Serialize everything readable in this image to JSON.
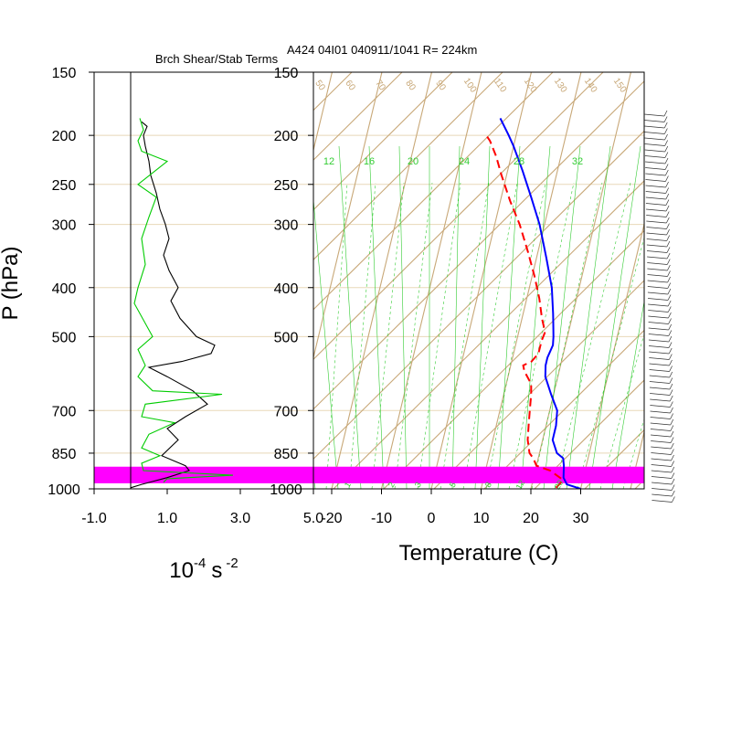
{
  "header": {
    "left_title": "Brch Shear/Stab Terms",
    "right_title": "A424 04I01 040911/1041 R= 224km"
  },
  "colors": {
    "background": "#ffffff",
    "grid_brown": "#c8a878",
    "pressure_line": "#e8d8b8",
    "mixing_ratio": "#33cc33",
    "temperature": "#0000ff",
    "dewpoint": "#ff0000",
    "shear_term": "#000000",
    "stability_term": "#00cc00",
    "highlight": "#ff00ff"
  },
  "chart_data": [
    {
      "type": "line",
      "title": "Brch Shear/Stab Terms",
      "ylabel": "P (hPa)",
      "xlabel": "10-4 s -2",
      "xlabel_parts": {
        "base": "10",
        "exp1": "-4",
        "unit": "s",
        "exp2": "-2"
      },
      "y_scale": "log",
      "ylim": [
        1000,
        150
      ],
      "xlim": [
        -1.0,
        5.0
      ],
      "x_ticks": [
        "-1.0",
        "1.0",
        "3.0",
        "5.0"
      ],
      "y_ticks": [
        "150",
        "200",
        "250",
        "300",
        "400",
        "500",
        "700",
        "850",
        "1000"
      ],
      "y_tick_values": [
        150,
        200,
        250,
        300,
        400,
        500,
        700,
        850,
        1000
      ],
      "reference_line_x": 0,
      "highlight_band_hPa": [
        975,
        904
      ],
      "series": [
        {
          "points": [
            [
              0.3,
              188
            ],
            [
              0.45,
              192
            ],
            [
              0.35,
              200
            ],
            [
              0.4,
              210
            ],
            [
              0.5,
              225
            ],
            [
              0.55,
              240
            ],
            [
              0.7,
              260
            ],
            [
              0.8,
              280
            ],
            [
              0.95,
              300
            ],
            [
              1.05,
              320
            ],
            [
              0.9,
              345
            ],
            [
              1.05,
              370
            ],
            [
              1.3,
              400
            ],
            [
              1.1,
              425
            ],
            [
              1.35,
              460
            ],
            [
              1.8,
              500
            ],
            [
              2.3,
              520
            ],
            [
              2.2,
              540
            ],
            [
              1.4,
              560
            ],
            [
              0.5,
              575
            ],
            [
              1.0,
              600
            ],
            [
              1.7,
              640
            ],
            [
              2.1,
              680
            ],
            [
              1.5,
              720
            ],
            [
              1.0,
              760
            ],
            [
              1.3,
              800
            ],
            [
              0.85,
              860
            ],
            [
              1.5,
              900
            ],
            [
              1.6,
              920
            ],
            [
              1.0,
              950
            ],
            [
              0.3,
              980
            ],
            [
              0.0,
              995
            ]
          ]
        },
        {
          "points": [
            [
              0.25,
              185
            ],
            [
              0.35,
              195
            ],
            [
              0.2,
              205
            ],
            [
              0.3,
              215
            ],
            [
              1.0,
              225
            ],
            [
              0.2,
              250
            ],
            [
              0.7,
              265
            ],
            [
              0.5,
              290
            ],
            [
              0.3,
              320
            ],
            [
              0.4,
              360
            ],
            [
              0.2,
              400
            ],
            [
              0.1,
              430
            ],
            [
              0.6,
              500
            ],
            [
              0.2,
              530
            ],
            [
              0.4,
              570
            ],
            [
              0.2,
              600
            ],
            [
              0.6,
              640
            ],
            [
              2.5,
              650
            ],
            [
              0.4,
              680
            ],
            [
              0.3,
              720
            ],
            [
              1.2,
              740
            ],
            [
              0.5,
              780
            ],
            [
              0.3,
              830
            ],
            [
              0.8,
              860
            ],
            [
              0.3,
              890
            ],
            [
              0.35,
              920
            ],
            [
              2.8,
              940
            ],
            [
              1.0,
              955
            ],
            [
              0.9,
              970
            ]
          ]
        }
      ]
    },
    {
      "type": "line",
      "title": "A424 04I01 040911/1041 R= 224km",
      "xlabel": "Temperature (C)",
      "y_scale": "log",
      "ylim": [
        1000,
        150
      ],
      "xlim": [
        -25,
        40
      ],
      "x_ticks": [
        "-20",
        "-10",
        "0",
        "10",
        "20",
        "30"
      ],
      "x_tick_values": [
        -20,
        -10,
        0,
        10,
        20,
        30
      ],
      "y_ticks": [
        "150",
        "200",
        "250",
        "300",
        "400",
        "500",
        "700",
        "850",
        "1000"
      ],
      "y_tick_values": [
        150,
        200,
        250,
        300,
        400,
        500,
        700,
        850,
        1000
      ],
      "skew": "skew-T log-p",
      "mixing_ratio_labels": [
        "12",
        "16",
        "20",
        "24",
        "28",
        "32"
      ],
      "bottom_labels": [
        "1",
        "2",
        "3",
        "5",
        "8",
        "12",
        "20"
      ],
      "theta_labels": [
        "50",
        "60",
        "70",
        "80",
        "90",
        "100",
        "110",
        "120",
        "130",
        "140",
        "150"
      ],
      "highlight_band_hPa": [
        975,
        904
      ],
      "series": [
        {
          "points": [
            [
              30,
              1000
            ],
            [
              27,
              980
            ],
            [
              26,
              950
            ],
            [
              25.5,
              900
            ],
            [
              25,
              870
            ],
            [
              23.5,
              850
            ],
            [
              22,
              800
            ],
            [
              22,
              750
            ],
            [
              21.5,
              700
            ],
            [
              19.5,
              650
            ],
            [
              17.5,
              600
            ],
            [
              17,
              570
            ],
            [
              17,
              550
            ],
            [
              17.5,
              520
            ],
            [
              17.2,
              500
            ],
            [
              16.5,
              470
            ],
            [
              16,
              450
            ],
            [
              14.5,
              400
            ],
            [
              12,
              350
            ],
            [
              9,
              300
            ],
            [
              6,
              265
            ],
            [
              3,
              235
            ],
            [
              0,
              210
            ],
            [
              -1.5,
              200
            ],
            [
              -4,
              185
            ]
          ]
        },
        {
          "points": [
            [
              25,
              995
            ],
            [
              25.5,
              980
            ],
            [
              26,
              960
            ],
            [
              23,
              920
            ],
            [
              20,
              900
            ],
            [
              19,
              870
            ],
            [
              18,
              850
            ],
            [
              17,
              800
            ],
            [
              16.5,
              750
            ],
            [
              16,
              700
            ],
            [
              15.5,
              650
            ],
            [
              15,
              620
            ],
            [
              13,
              585
            ],
            [
              12.5,
              570
            ],
            [
              14,
              560
            ],
            [
              15,
              540
            ],
            [
              15,
              510
            ],
            [
              15.3,
              490
            ],
            [
              14,
              460
            ],
            [
              12.5,
              420
            ],
            [
              10.5,
              380
            ],
            [
              8,
              340
            ],
            [
              5,
              300
            ],
            [
              2,
              270
            ],
            [
              -1,
              240
            ],
            [
              -3,
              220
            ],
            [
              -5,
              205
            ],
            [
              -6,
              200
            ]
          ]
        }
      ]
    }
  ]
}
